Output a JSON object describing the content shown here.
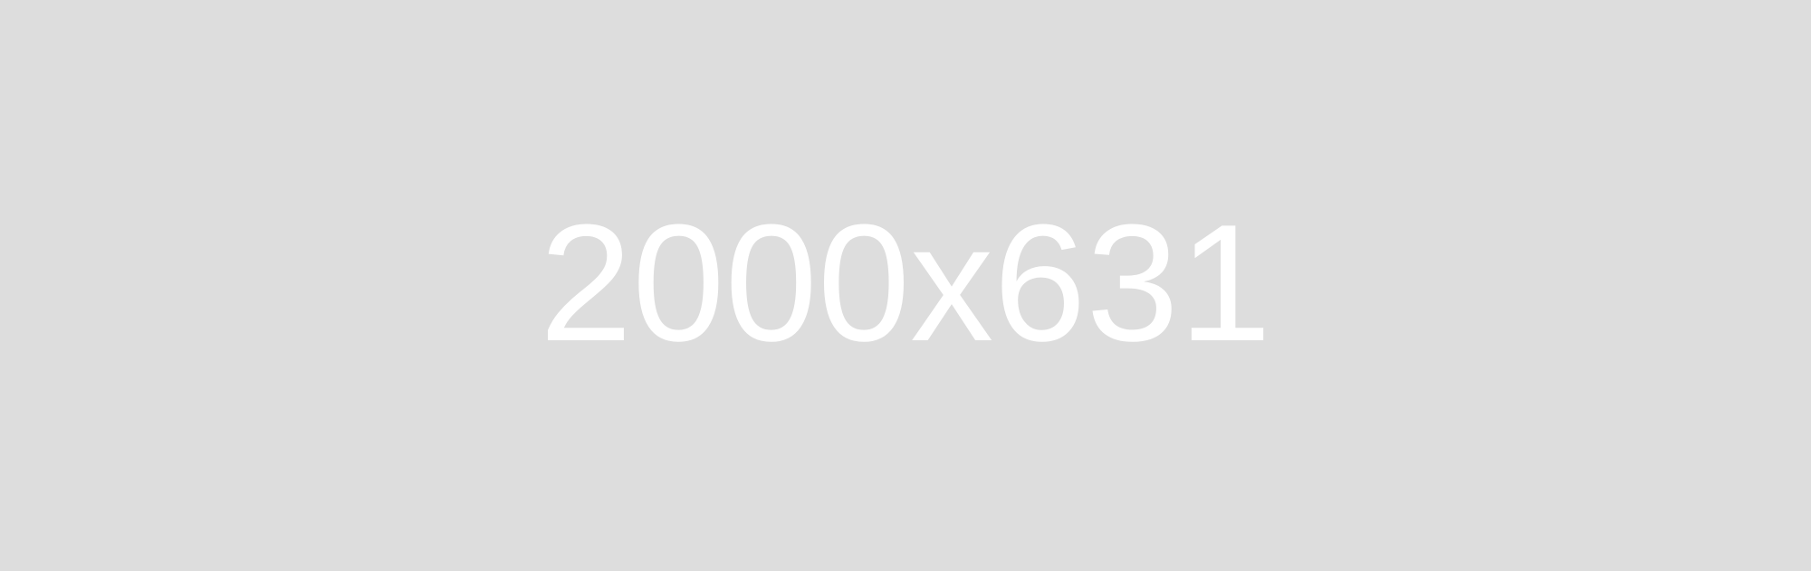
{
  "placeholder": {
    "text": "2000x631",
    "background_color": "#dddddd",
    "text_color": "#ffffff"
  }
}
